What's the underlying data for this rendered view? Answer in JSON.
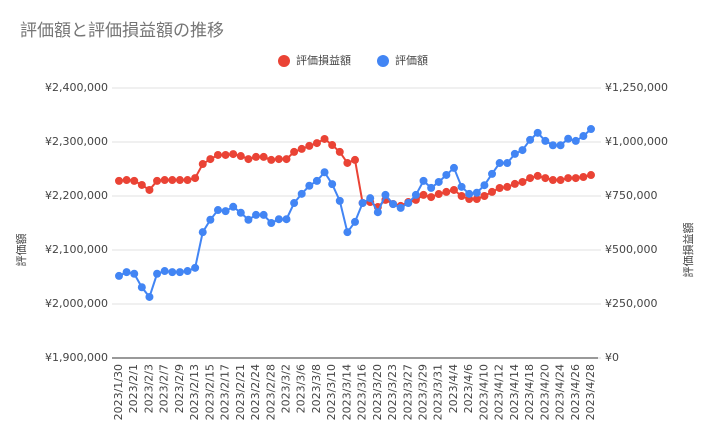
{
  "chart_data": {
    "type": "line",
    "title": "評価額と評価損益額の推移",
    "y_label": "評価額",
    "y2_label": "評価損益額",
    "categories": [
      "2023/1/30",
      null,
      "2023/2/1",
      null,
      "2023/2/3",
      null,
      "2023/2/7",
      null,
      "2023/2/9",
      null,
      "2023/2/13",
      null,
      "2023/2/15",
      null,
      "2023/2/17",
      null,
      "2023/2/21",
      null,
      "2023/2/24",
      null,
      "2023/2/28",
      null,
      "2023/3/2",
      null,
      "2023/3/6",
      null,
      "2023/3/8",
      null,
      "2023/3/10",
      null,
      "2023/3/14",
      null,
      "2023/3/16",
      null,
      "2023/3/20",
      null,
      "2023/3/23",
      null,
      "2023/3/27",
      null,
      "2023/3/29",
      null,
      "2023/3/31",
      null,
      "2023/4/4",
      null,
      "2023/4/6",
      null,
      "2023/4/10",
      null,
      "2023/4/12",
      null,
      "2023/4/14",
      null,
      "2023/4/18",
      null,
      "2023/4/20",
      null,
      "2023/4/24",
      null,
      "2023/4/26",
      null,
      "2023/4/28"
    ],
    "series": [
      {
        "name": "評価損益額",
        "color": "#ea4335",
        "axis": "y2",
        "values": [
          820000,
          824000,
          820000,
          801000,
          778000,
          820000,
          824000,
          824000,
          824000,
          824000,
          833000,
          898000,
          921000,
          940000,
          940000,
          944000,
          935000,
          921000,
          931000,
          931000,
          917000,
          921000,
          921000,
          954000,
          968000,
          982000,
          995000,
          1014000,
          986000,
          954000,
          903000,
          917000,
          718000,
          722000,
          699000,
          732000,
          713000,
          704000,
          722000,
          732000,
          755000,
          745000,
          759000,
          769000,
          778000,
          750000,
          736000,
          736000,
          750000,
          769000,
          787000,
          792000,
          806000,
          815000,
          833000,
          843000,
          833000,
          824000,
          824000,
          833000,
          833000,
          838000,
          847000
        ]
      },
      {
        "name": "評価額",
        "color": "#4285f4",
        "values": [
          2052000,
          2059000,
          2056000,
          2031000,
          2013000,
          2056000,
          2061000,
          2059000,
          2059000,
          2061000,
          2067000,
          2133000,
          2156000,
          2174000,
          2172000,
          2180000,
          2169000,
          2156000,
          2165000,
          2165000,
          2150000,
          2157000,
          2157000,
          2187000,
          2204000,
          2219000,
          2228000,
          2244000,
          2222000,
          2191000,
          2133000,
          2152000,
          2187000,
          2196000,
          2170000,
          2202000,
          2185000,
          2178000,
          2187000,
          2202000,
          2228000,
          2215000,
          2226000,
          2239000,
          2252000,
          2217000,
          2204000,
          2206000,
          2220000,
          2241000,
          2261000,
          2261000,
          2278000,
          2285000,
          2304000,
          2317000,
          2302000,
          2294000,
          2294000,
          2306000,
          2302000,
          2311000,
          2324000
        ]
      }
    ],
    "ylim": [
      1900000,
      2400000
    ],
    "yticks": [
      {
        "value": 1900000,
        "label": "¥1,900,000"
      },
      {
        "value": 2000000,
        "label": "¥2,000,000"
      },
      {
        "value": 2100000,
        "label": "¥2,100,000"
      },
      {
        "value": 2200000,
        "label": "¥2,200,000"
      },
      {
        "value": 2300000,
        "label": "¥2,300,000"
      },
      {
        "value": 2400000,
        "label": "¥2,400,000"
      }
    ],
    "y2lim": [
      0,
      1250000
    ],
    "y2ticks": [
      {
        "value": 0,
        "label": "¥0"
      },
      {
        "value": 250000,
        "label": "¥250,000"
      },
      {
        "value": 500000,
        "label": "¥500,000"
      },
      {
        "value": 750000,
        "label": "¥750,000"
      },
      {
        "value": 1000000,
        "label": "¥1,000,000"
      },
      {
        "value": 1250000,
        "label": "¥1,250,000"
      }
    ],
    "grid": true,
    "legend": "top"
  }
}
